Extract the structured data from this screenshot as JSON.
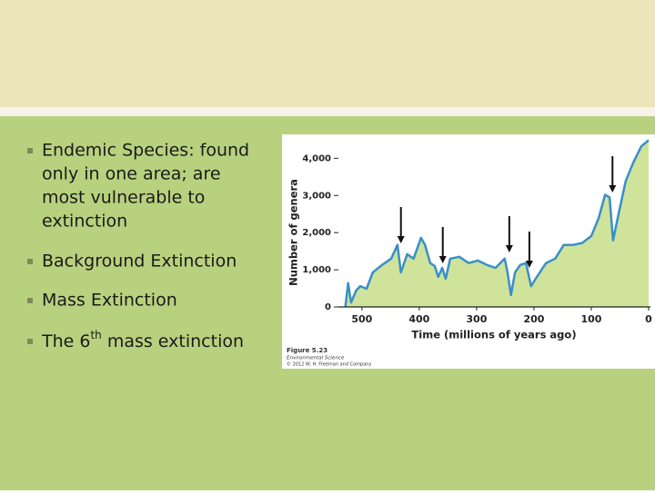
{
  "slide": {
    "bullets": [
      {
        "parts": [
          "Endemic Species: found",
          "only in one area; are",
          "most vulnerable to",
          "extinction"
        ]
      },
      {
        "parts": [
          "Background Extinction"
        ]
      },
      {
        "parts": [
          "Mass Extinction"
        ]
      },
      {
        "parts": [
          "The 6",
          "th",
          " mass extinction"
        ]
      }
    ]
  },
  "chart_data": {
    "type": "area",
    "ylabel": "Number of genera",
    "xlabel": "Time (millions of years ago)",
    "caption": [
      "Figure 5.23",
      "Environmental Science",
      "© 2012 W. H. Freeman and Company"
    ],
    "x": [
      529,
      524,
      519,
      510,
      503,
      492,
      481,
      465,
      449,
      438,
      432,
      421,
      410,
      397,
      390,
      381,
      373,
      367,
      360,
      354,
      346,
      330,
      314,
      298,
      282,
      267,
      251,
      246,
      240,
      233,
      224,
      214,
      205,
      195,
      179,
      163,
      148,
      132,
      116,
      100,
      87,
      76,
      68,
      62,
      52,
      40,
      27,
      13,
      0
    ],
    "values": [
      0,
      640,
      120,
      440,
      560,
      490,
      930,
      1130,
      1300,
      1670,
      930,
      1420,
      1300,
      1860,
      1670,
      1180,
      1100,
      810,
      1050,
      760,
      1300,
      1350,
      1180,
      1250,
      1130,
      1050,
      1300,
      930,
      320,
      930,
      1130,
      1180,
      560,
      810,
      1180,
      1300,
      1670,
      1670,
      1720,
      1910,
      2400,
      3020,
      2950,
      1790,
      2530,
      3390,
      3880,
      4320,
      4490
    ],
    "line_color": "#3a8fc8",
    "fill_color": "#cfe39a",
    "arrows_x": [
      432,
      359,
      243,
      208,
      63
    ],
    "xlim": [
      541,
      0
    ],
    "ylim": [
      0,
      4400
    ],
    "xticks": [
      500,
      400,
      300,
      200,
      100,
      0
    ],
    "yticks": [
      0,
      {
        "value": 1000,
        "label": "1,000"
      },
      {
        "value": 2000,
        "label": "2,000"
      },
      {
        "value": 3000,
        "label": "3,000"
      },
      {
        "value": 4000,
        "label": "4,000"
      }
    ]
  }
}
